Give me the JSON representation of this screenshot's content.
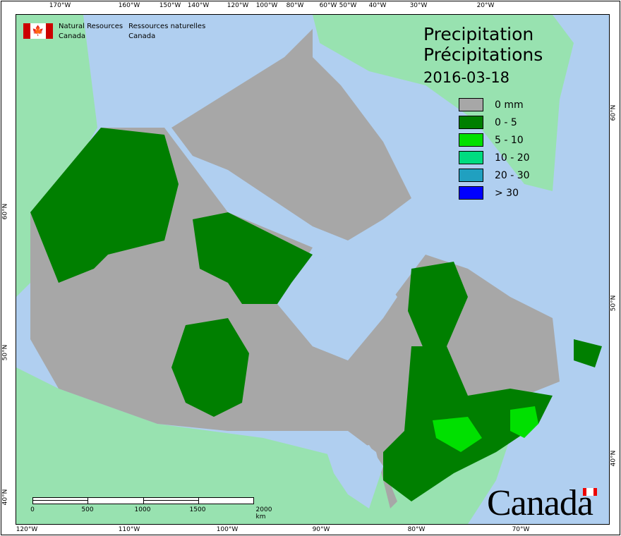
{
  "header": {
    "org_en_1": "Natural Resources",
    "org_en_2": "Canada",
    "org_fr_1": "Ressources naturelles",
    "org_fr_2": "Canada"
  },
  "title": {
    "en": "Precipitation",
    "fr": "Précipitations",
    "date": "2016-03-18"
  },
  "legend": [
    {
      "label": "0 mm",
      "color": "#a7a7a7"
    },
    {
      "label": "0 - 5",
      "color": "#007f00"
    },
    {
      "label": "5 - 10",
      "color": "#00e000"
    },
    {
      "label": "10 - 20",
      "color": "#00dc80"
    },
    {
      "label": "20 - 30",
      "color": "#20a0c0"
    },
    {
      "label": "> 30",
      "color": "#0000ff"
    }
  ],
  "top_ticks": [
    "170°W",
    "160°W",
    "150°W",
    "140°W",
    "120°W",
    "100°W",
    "80°W",
    "60°W",
    "50°W",
    "40°W",
    "30°W",
    "20°W"
  ],
  "bottom_ticks": [
    "120°W",
    "110°W",
    "100°W",
    "90°W",
    "80°W",
    "70°W"
  ],
  "left_ticks": [
    "60°N",
    "50°N",
    "40°N"
  ],
  "right_ticks": [
    "60°N",
    "50°N",
    "40°N"
  ],
  "scale_bar": {
    "labels": [
      "0",
      "500",
      "1000",
      "1500",
      "2000 km"
    ]
  },
  "wordmark": "Canada",
  "colors": {
    "ocean": "#b0cff0",
    "foreign_land": "#98e2b0",
    "no_precip": "#a7a7a7",
    "light": "#007f00"
  }
}
